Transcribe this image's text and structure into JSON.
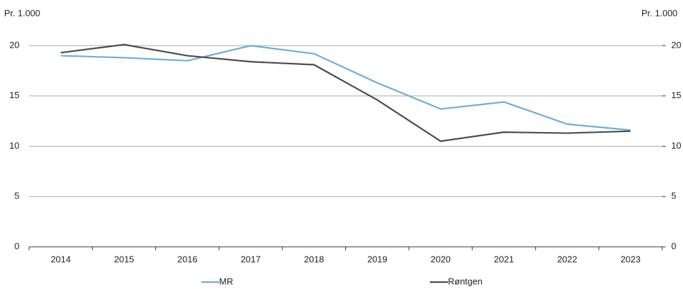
{
  "chart_data": {
    "type": "line",
    "y_label": "Pr. 1.000",
    "y2_label": "Pr. 1.000",
    "categories": [
      "2014",
      "2015",
      "2016",
      "2017",
      "2018",
      "2019",
      "2020",
      "2021",
      "2022",
      "2023"
    ],
    "series": [
      {
        "name": "MR",
        "color": "#6aaed6",
        "values": [
          19.0,
          18.8,
          18.5,
          20.0,
          19.2,
          16.3,
          13.7,
          14.4,
          12.2,
          11.6
        ]
      },
      {
        "name": "Røntgen",
        "color": "#4a4a4a",
        "values": [
          19.3,
          20.1,
          19.0,
          18.4,
          18.1,
          14.6,
          10.5,
          11.4,
          11.3,
          11.5
        ]
      }
    ],
    "ylim": [
      0,
      20
    ],
    "yticks": [
      0,
      5,
      10,
      15,
      20
    ],
    "y2lim": [
      0,
      20
    ],
    "y2ticks": [
      0,
      5,
      10,
      15,
      20
    ],
    "grid": true,
    "legend": "bottom"
  }
}
